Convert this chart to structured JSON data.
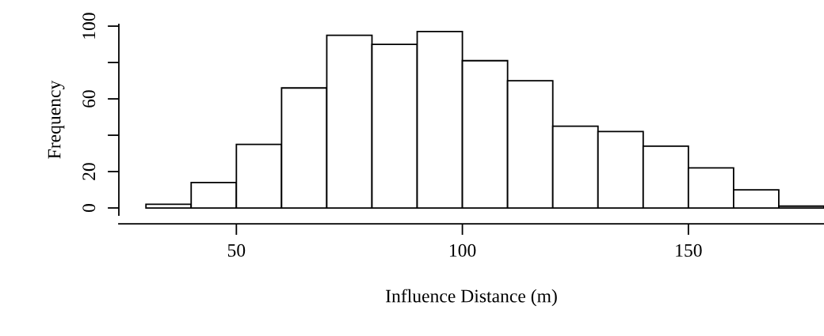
{
  "chart_data": {
    "type": "histogram",
    "xlabel": "Influence Distance (m)",
    "ylabel": "Frequency",
    "bins": [
      30,
      40,
      50,
      60,
      70,
      80,
      90,
      100,
      110,
      120,
      130,
      140,
      150,
      160,
      170,
      180
    ],
    "values": [
      2,
      14,
      35,
      66,
      95,
      90,
      97,
      81,
      70,
      45,
      42,
      34,
      22,
      10,
      1
    ],
    "color": "#ffffff",
    "xlim": [
      24,
      180
    ],
    "ylim": [
      -3.9,
      100.9
    ],
    "xticks": [
      50,
      100,
      150
    ],
    "yticks": [
      0,
      20,
      {
        "value": 40,
        "label": null
      },
      60,
      {
        "value": 80,
        "label": null
      },
      100
    ],
    "grid": false
  }
}
